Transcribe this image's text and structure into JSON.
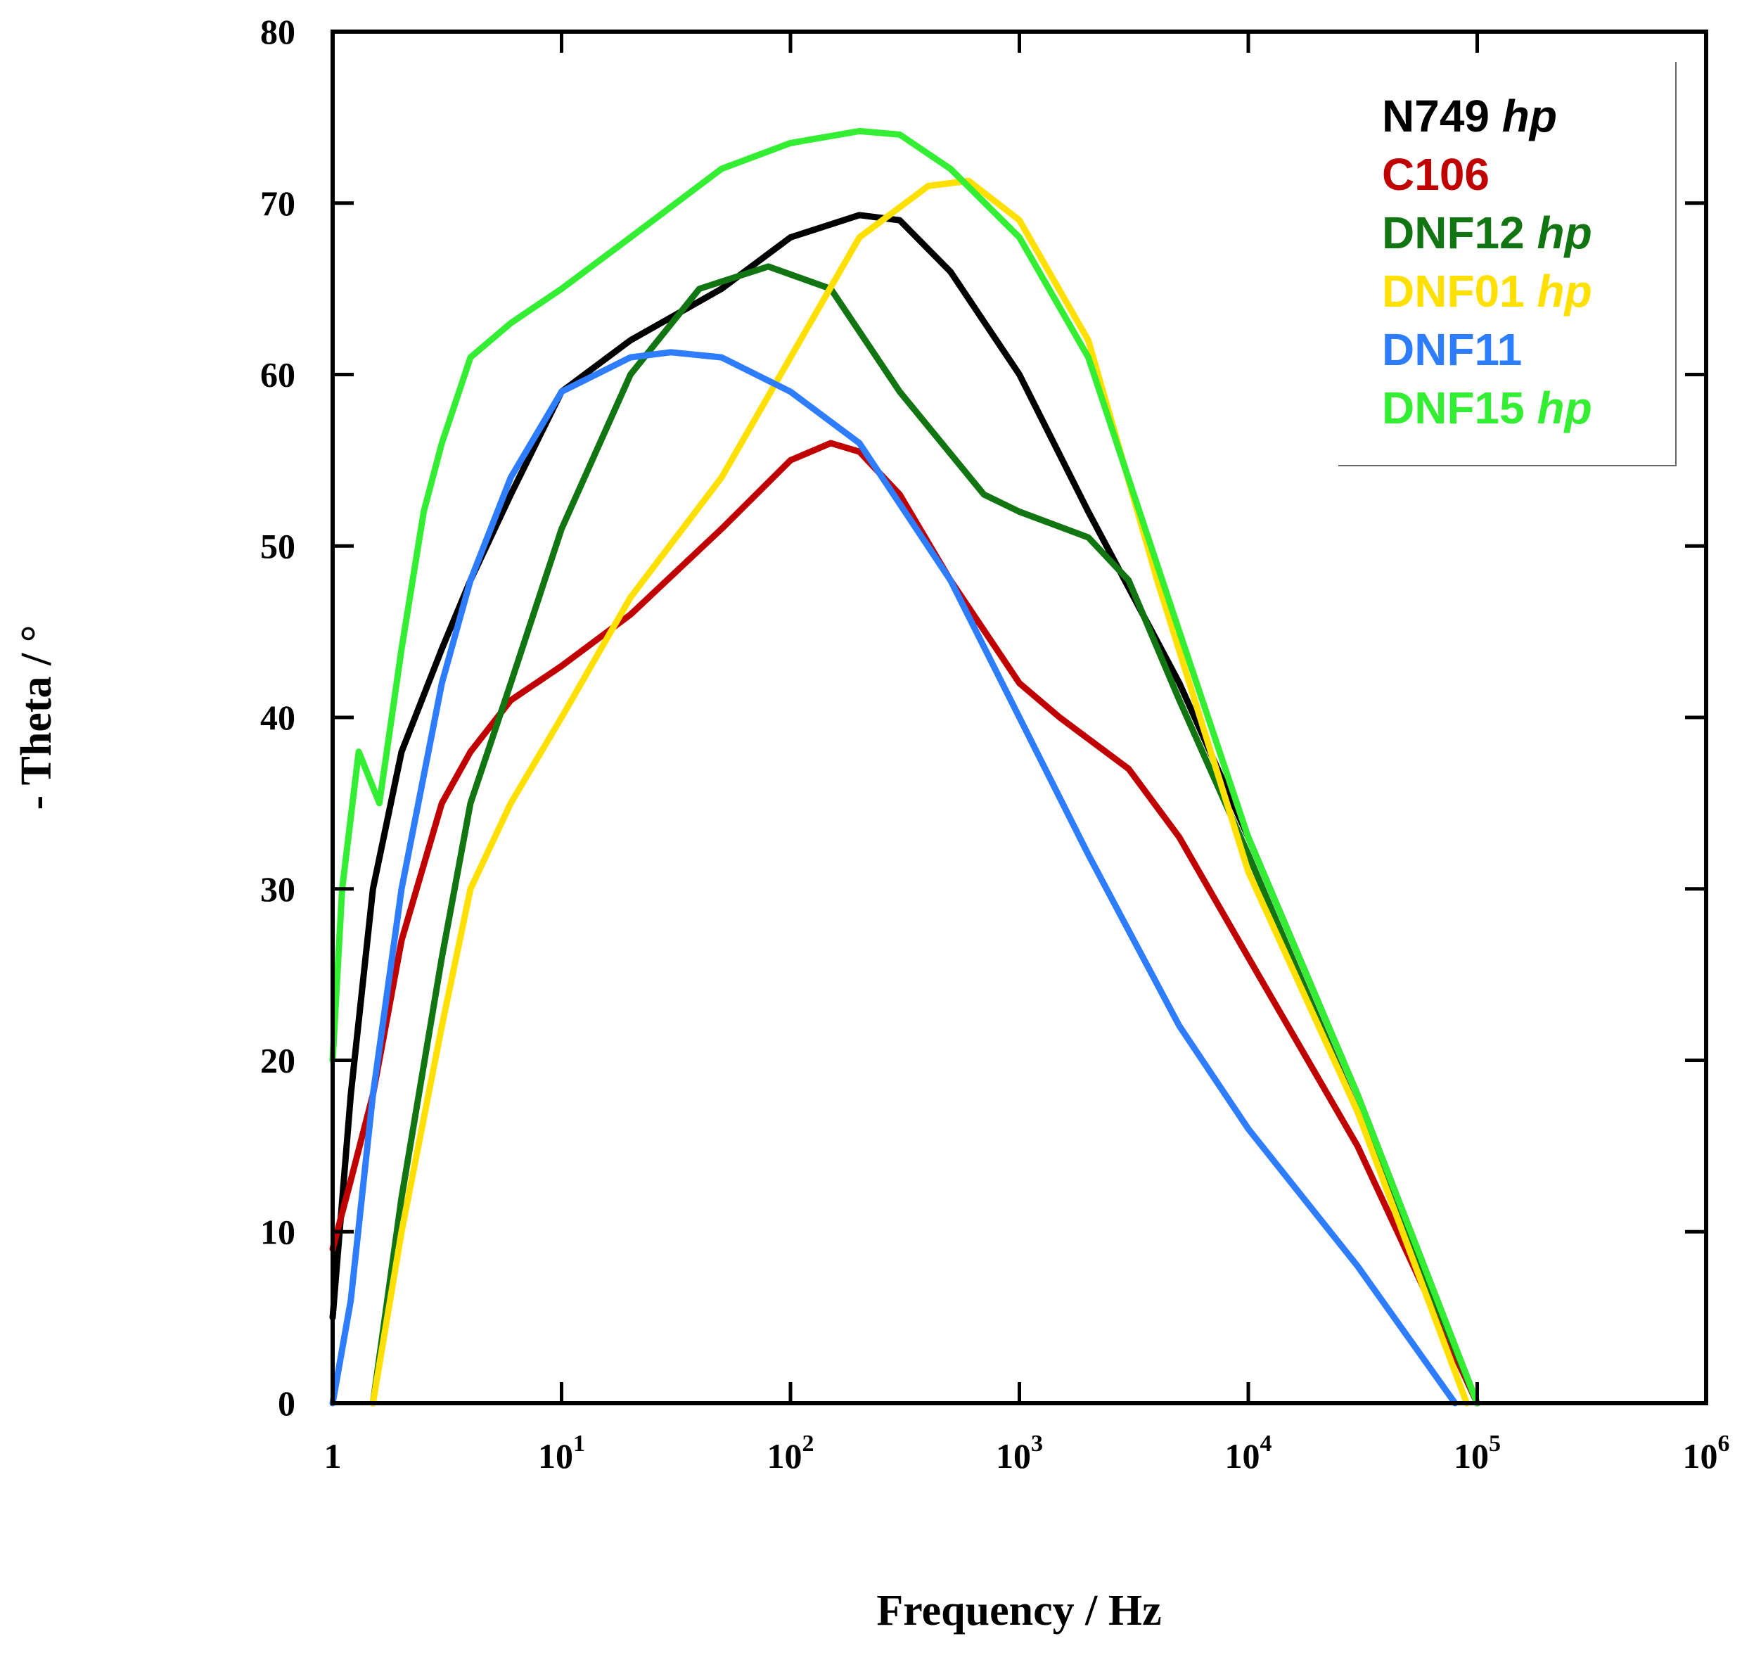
{
  "chart_data": {
    "type": "line",
    "xscale": "log",
    "xlabel": "Frequency / Hz",
    "ylabel": "- Theta / °",
    "xlim": [
      1,
      1000000
    ],
    "ylim": [
      0,
      80
    ],
    "yticks": [
      0,
      10,
      20,
      30,
      40,
      50,
      60,
      70,
      80
    ],
    "xtick_labels": [
      {
        "base": "1",
        "exp": ""
      },
      {
        "base": "10",
        "exp": "1"
      },
      {
        "base": "10",
        "exp": "2"
      },
      {
        "base": "10",
        "exp": "3"
      },
      {
        "base": "10",
        "exp": "4"
      },
      {
        "base": "10",
        "exp": "5"
      },
      {
        "base": "10",
        "exp": "6"
      }
    ],
    "legend_position": "top-right",
    "series": [
      {
        "name": "N749",
        "suffix": "hp",
        "color": "#000000",
        "x": [
          1,
          1.2,
          1.5,
          2,
          3,
          4,
          6,
          10,
          20,
          50,
          100,
          200,
          300,
          500,
          1000,
          2000,
          5000,
          10000,
          30000,
          100000
        ],
        "y": [
          5,
          18,
          30,
          38,
          44,
          48,
          53,
          59,
          62,
          65,
          68,
          69.3,
          69,
          66,
          60,
          52,
          42,
          33,
          18,
          0
        ]
      },
      {
        "name": "C106",
        "suffix": "",
        "color": "#c00000",
        "x": [
          1,
          1.2,
          1.5,
          2,
          3,
          4,
          6,
          10,
          20,
          50,
          100,
          150,
          200,
          300,
          500,
          1000,
          1500,
          3000,
          5000,
          10000,
          30000,
          100000
        ],
        "y": [
          9,
          13,
          18,
          27,
          35,
          38,
          41,
          43,
          46,
          51,
          55,
          56,
          55.5,
          53,
          48,
          42,
          40,
          37,
          33,
          26,
          15,
          0
        ]
      },
      {
        "name": "DNF12",
        "suffix": "hp",
        "color": "#117511",
        "x": [
          1.5,
          2,
          3,
          4,
          6,
          10,
          20,
          40,
          80,
          150,
          300,
          700,
          1000,
          2000,
          3000,
          5000,
          10000,
          30000,
          100000
        ],
        "y": [
          0,
          12,
          26,
          35,
          42,
          51,
          60,
          65,
          66.3,
          65,
          59,
          53,
          52,
          50.5,
          48,
          41,
          32,
          17,
          0
        ]
      },
      {
        "name": "DNF01",
        "suffix": "hp",
        "color": "#ffe000",
        "x": [
          1.5,
          2,
          3,
          4,
          6,
          10,
          20,
          50,
          100,
          200,
          400,
          600,
          1000,
          2000,
          4000,
          10000,
          30000,
          90000
        ],
        "y": [
          0,
          10,
          22,
          30,
          35,
          40,
          47,
          54,
          61,
          68,
          71,
          71.3,
          69,
          62,
          48,
          31,
          17,
          0
        ]
      },
      {
        "name": "DNF11",
        "suffix": "",
        "color": "#2f7dff",
        "x": [
          1,
          1.2,
          1.5,
          2,
          3,
          4,
          6,
          10,
          20,
          30,
          50,
          100,
          200,
          500,
          1000,
          2000,
          5000,
          10000,
          30000,
          80000
        ],
        "y": [
          0,
          6,
          18,
          30,
          42,
          48,
          54,
          59,
          61,
          61.3,
          61,
          59,
          56,
          48,
          40,
          32,
          22,
          16,
          8,
          0
        ]
      },
      {
        "name": "DNF15",
        "suffix": "hp",
        "color": "#33ee33",
        "x": [
          1,
          1.1,
          1.3,
          1.6,
          2,
          2.5,
          3,
          4,
          6,
          10,
          20,
          50,
          100,
          200,
          300,
          500,
          1000,
          2000,
          5000,
          10000,
          30000,
          100000
        ],
        "y": [
          20,
          30,
          38,
          35,
          44,
          52,
          56,
          61,
          63,
          65,
          68,
          72,
          73.5,
          74.2,
          74,
          72,
          68,
          61,
          45,
          33,
          18,
          0
        ]
      }
    ]
  }
}
